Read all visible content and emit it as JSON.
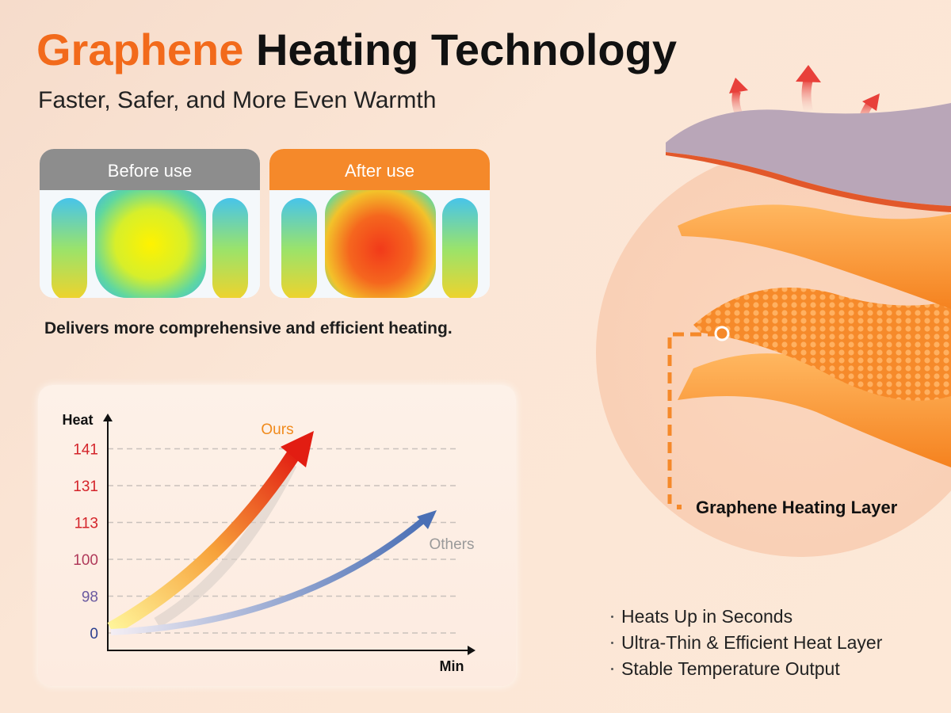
{
  "header": {
    "title_highlight": "Graphene",
    "title_rest": "Heating Technology",
    "subtitle": "Faster, Safer, and More Even Warmth"
  },
  "comparison": {
    "panels": [
      {
        "label": "Before use"
      },
      {
        "label": "After use"
      }
    ],
    "caption": "Delivers more comprehensive and efficient heating."
  },
  "heat_chart": {
    "y_axis_label": "Heat",
    "x_axis_label": "Min",
    "tick_labels": [
      0,
      98,
      100,
      113,
      131,
      141
    ],
    "curves": [
      {
        "label": "Ours"
      },
      {
        "label": "Others"
      }
    ]
  },
  "layers": {
    "label": "Graphene Heating Layer"
  },
  "features": [
    "Heats Up in Seconds",
    "Ultra-Thin & Efficient Heat Layer",
    "Stable Temperature Output"
  ]
}
